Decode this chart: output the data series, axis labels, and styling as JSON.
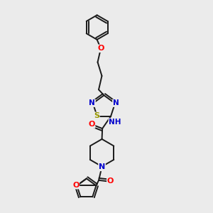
{
  "bg_color": "#ebebeb",
  "bond_color": "#1a1a1a",
  "atom_colors": {
    "O": "#ff0000",
    "N": "#0000cc",
    "S": "#999900",
    "H": "#008080",
    "C": "#1a1a1a"
  },
  "font_size": 7.5,
  "line_width": 1.4
}
